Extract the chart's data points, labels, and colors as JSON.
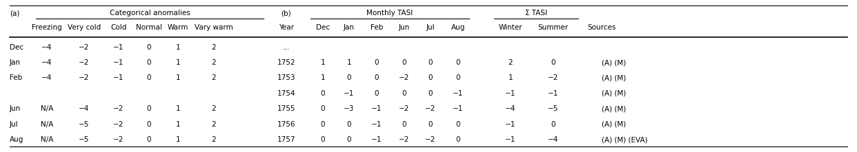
{
  "header_cat": "Categorical anomalies",
  "header_monthly": "Monthly TASI",
  "header_sum": "Σ TASI",
  "col_a_headers": [
    "Freezing",
    "Very cold",
    "Cold",
    "Normal",
    "Warm",
    "Vary warm"
  ],
  "col_a_rows": [
    [
      "Dec",
      "−4",
      "−2",
      "−1",
      "0",
      "1",
      "2"
    ],
    [
      "Jan",
      "−4",
      "−2",
      "−1",
      "0",
      "1",
      "2"
    ],
    [
      "Feb",
      "−4",
      "−2",
      "−1",
      "0",
      "1",
      "2"
    ],
    [
      "",
      "",
      "",
      "",
      "",
      "",
      ""
    ],
    [
      "Jun",
      "N/A",
      "−4",
      "−2",
      "0",
      "1",
      "2"
    ],
    [
      "Jul",
      "N/A",
      "−5",
      "−2",
      "0",
      "1",
      "2"
    ],
    [
      "Aug",
      "N/A",
      "−5",
      "−2",
      "0",
      "1",
      "2"
    ]
  ],
  "col_b_header_monthly": [
    "Dec",
    "Jan",
    "Feb",
    "Jun",
    "Jul",
    "Aug"
  ],
  "col_b_header_sum": [
    "Winter",
    "Summer"
  ],
  "col_b_rows": [
    [
      "...",
      "",
      "",
      "",
      "",
      "",
      "",
      "",
      "",
      ""
    ],
    [
      "1752",
      "1",
      "1",
      "0",
      "0",
      "0",
      "0",
      "2",
      "0",
      "(A) (M)"
    ],
    [
      "1753",
      "1",
      "0",
      "0",
      "−2",
      "0",
      "0",
      "1",
      "−2",
      "(A) (M)"
    ],
    [
      "1754",
      "0",
      "−1",
      "0",
      "0",
      "0",
      "−1",
      "−1",
      "−1",
      "(A) (M)"
    ],
    [
      "1755",
      "0",
      "−3",
      "−1",
      "−2",
      "−2",
      "−1",
      "−4",
      "−5",
      "(A) (M)"
    ],
    [
      "1756",
      "0",
      "0",
      "−1",
      "0",
      "0",
      "0",
      "−1",
      "0",
      "(A) (M)"
    ],
    [
      "1757",
      "0",
      "0",
      "−1",
      "−2",
      "−2",
      "0",
      "−1",
      "−4",
      "(A) (M) (EVA)"
    ]
  ],
  "bg_color": "#ffffff",
  "text_color": "#000000",
  "line_color": "#000000",
  "fig_width": 12.42,
  "fig_height": 2.21,
  "dpi": 100
}
